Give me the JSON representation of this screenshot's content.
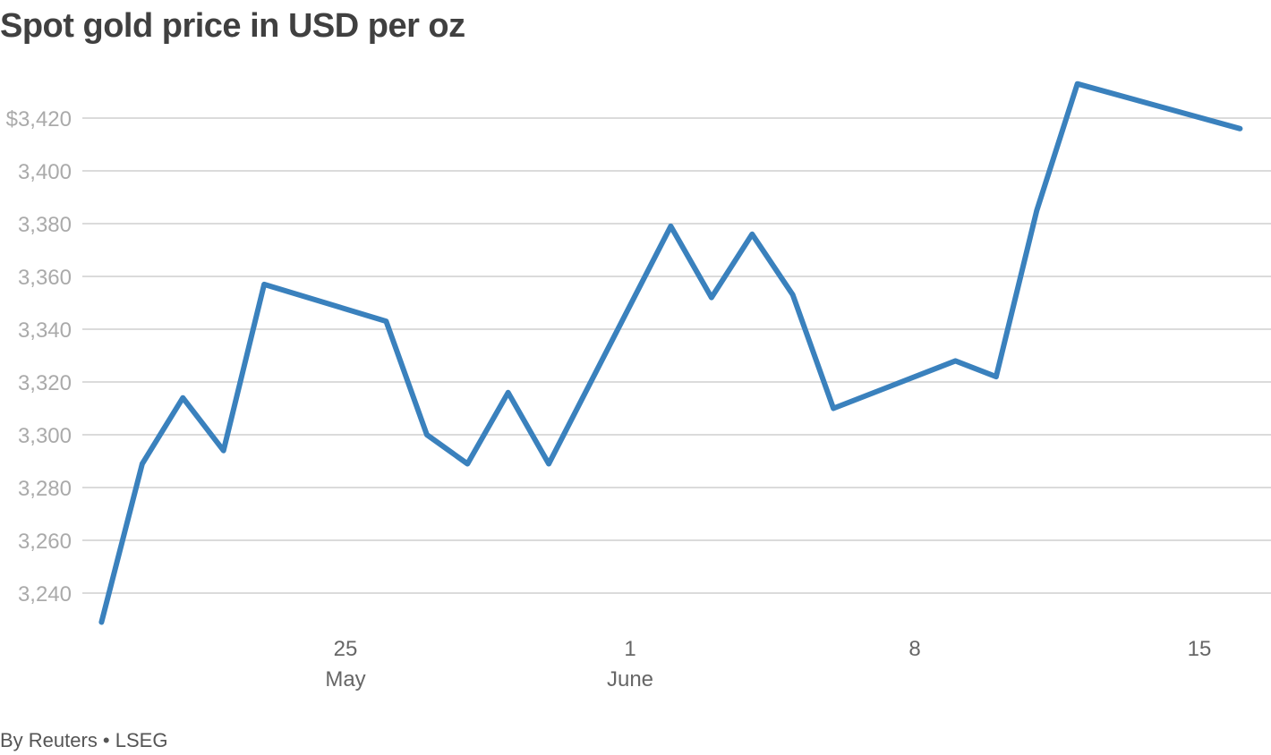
{
  "chart_data": {
    "type": "line",
    "title": "Spot gold price in USD per oz",
    "source": "By Reuters • LSEG",
    "xlabel": "",
    "ylabel": "",
    "ylim": [
      3222,
      3444
    ],
    "y_ticks": [
      {
        "value": 3240,
        "label": "3,240"
      },
      {
        "value": 3260,
        "label": "3,260"
      },
      {
        "value": 3280,
        "label": "3,280"
      },
      {
        "value": 3300,
        "label": "3,300"
      },
      {
        "value": 3320,
        "label": "3,320"
      },
      {
        "value": 3340,
        "label": "3,340"
      },
      {
        "value": 3360,
        "label": "3,360"
      },
      {
        "value": 3380,
        "label": "3,380"
      },
      {
        "value": 3400,
        "label": "3,400"
      },
      {
        "value": 3420,
        "label": "$3,420"
      }
    ],
    "x_ticks": [
      {
        "date": "2025-05-25",
        "label": "25",
        "sublabel": "May"
      },
      {
        "date": "2025-06-01",
        "label": "1",
        "sublabel": "June"
      },
      {
        "date": "2025-06-08",
        "label": "8",
        "sublabel": ""
      },
      {
        "date": "2025-06-15",
        "label": "15",
        "sublabel": ""
      }
    ],
    "grid": true,
    "legend": "none",
    "series_color": "#3a81bd",
    "series": [
      {
        "points": [
          {
            "x": "2025-05-19",
            "y": 3229
          },
          {
            "x": "2025-05-20",
            "y": 3289
          },
          {
            "x": "2025-05-21",
            "y": 3314
          },
          {
            "x": "2025-05-22",
            "y": 3294
          },
          {
            "x": "2025-05-23",
            "y": 3357
          },
          {
            "x": "2025-05-26",
            "y": 3343
          },
          {
            "x": "2025-05-27",
            "y": 3300
          },
          {
            "x": "2025-05-28",
            "y": 3289
          },
          {
            "x": "2025-05-29",
            "y": 3316
          },
          {
            "x": "2025-05-30",
            "y": 3289
          },
          {
            "x": "2025-06-02",
            "y": 3379
          },
          {
            "x": "2025-06-03",
            "y": 3352
          },
          {
            "x": "2025-06-04",
            "y": 3376
          },
          {
            "x": "2025-06-05",
            "y": 3353
          },
          {
            "x": "2025-06-06",
            "y": 3310
          },
          {
            "x": "2025-06-09",
            "y": 3328
          },
          {
            "x": "2025-06-10",
            "y": 3322
          },
          {
            "x": "2025-06-11",
            "y": 3385
          },
          {
            "x": "2025-06-12",
            "y": 3433
          },
          {
            "x": "2025-06-16",
            "y": 3416
          }
        ]
      }
    ]
  }
}
